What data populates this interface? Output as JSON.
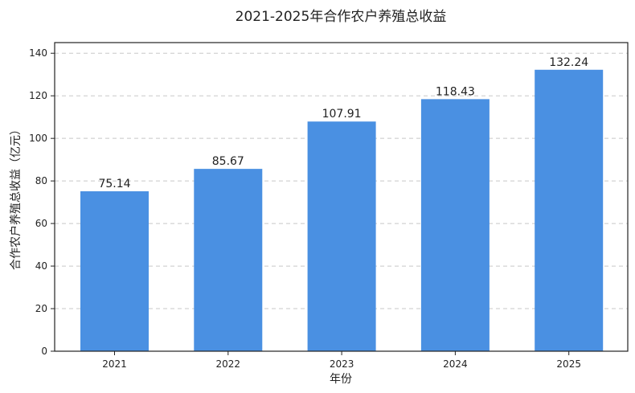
{
  "chart_data": {
    "type": "bar",
    "title": "2021-2025年合作农户养殖总收益",
    "xlabel": "年份",
    "ylabel": "合作农户养殖总收益（亿元）",
    "categories": [
      "2021",
      "2022",
      "2023",
      "2024",
      "2025"
    ],
    "values": [
      75.14,
      85.67,
      107.91,
      118.43,
      132.24
    ],
    "data_labels": [
      "75.14",
      "85.67",
      "107.91",
      "118.43",
      "132.24"
    ],
    "ylim": [
      0,
      145
    ],
    "yticks": [
      0,
      20,
      40,
      60,
      80,
      100,
      120,
      140
    ],
    "grid": "y-dashed",
    "legend": "none",
    "bar_color": "#4a90e2"
  }
}
